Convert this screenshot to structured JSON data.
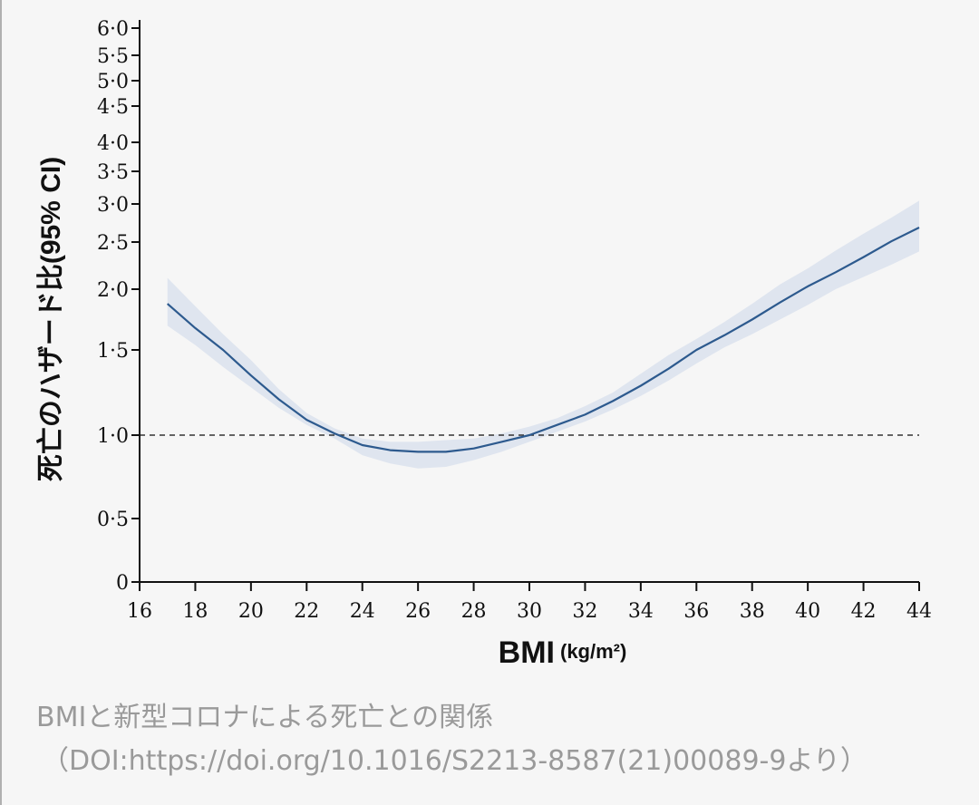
{
  "chart_data": {
    "type": "line",
    "ylabel": "死亡のハザード比(95% CI)",
    "xlabel": "BMI",
    "xlabel_unit": "(kg/m²)",
    "xlim": [
      16,
      44
    ],
    "ylim": [
      0,
      6.0
    ],
    "y_scale": "log-like (nonlinear)",
    "x_ticks": [
      "16",
      "18",
      "20",
      "22",
      "24",
      "26",
      "28",
      "30",
      "32",
      "34",
      "36",
      "38",
      "40",
      "42",
      "44"
    ],
    "y_ticks": [
      "0",
      "0·5",
      "1·0",
      "1·5",
      "2·0",
      "2·5",
      "3·0",
      "3·5",
      "4·0",
      "4·5",
      "5·0",
      "5·5",
      "6·0"
    ],
    "reference_line": {
      "y": 1.0,
      "style": "dashed"
    },
    "series": [
      {
        "x": [
          17,
          18,
          19,
          20,
          21,
          22,
          23,
          24,
          25,
          26,
          27,
          28,
          29,
          30,
          31,
          32,
          33,
          34,
          35,
          36,
          37,
          38,
          39,
          40,
          41,
          42,
          43,
          44
        ],
        "values": [
          1.88,
          1.68,
          1.5,
          1.35,
          1.21,
          1.09,
          1.01,
          0.94,
          0.91,
          0.9,
          0.9,
          0.92,
          0.96,
          1.0,
          1.06,
          1.12,
          1.2,
          1.29,
          1.39,
          1.5,
          1.62,
          1.75,
          1.89,
          2.03,
          2.18,
          2.34,
          2.51,
          2.69
        ],
        "ci_lower": [
          1.7,
          1.54,
          1.4,
          1.28,
          1.16,
          1.06,
          0.98,
          0.88,
          0.83,
          0.8,
          0.81,
          0.85,
          0.9,
          0.96,
          1.02,
          1.08,
          1.15,
          1.23,
          1.32,
          1.42,
          1.52,
          1.63,
          1.75,
          1.87,
          2.0,
          2.13,
          2.26,
          2.4
        ],
        "ci_upper": [
          2.12,
          1.86,
          1.63,
          1.44,
          1.27,
          1.13,
          1.04,
          0.98,
          0.96,
          0.96,
          0.97,
          0.98,
          1.01,
          1.05,
          1.1,
          1.17,
          1.25,
          1.36,
          1.47,
          1.59,
          1.73,
          1.88,
          2.05,
          2.22,
          2.41,
          2.61,
          2.82,
          3.05
        ],
        "color": "#2d5a8e",
        "ci_color": "#dfe5ef"
      }
    ],
    "grid": false
  },
  "caption": {
    "line1": "BMIと新型コロナによる死亡との関係",
    "line2": "（DOI:https://doi.org/10.1016/S2213-8587(21)00089-9より）"
  }
}
